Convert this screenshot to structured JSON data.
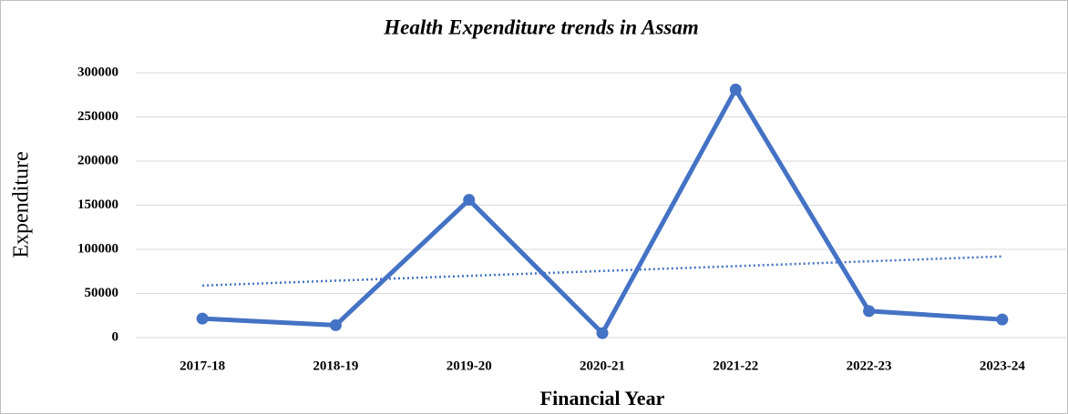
{
  "chart_data": {
    "type": "line",
    "title": "Health Expenditure trends in Assam",
    "x_label": "Financial Year",
    "y_label": "Expenditure",
    "categories": [
      "2017-18",
      "2018-19",
      "2019-20",
      "2020-21",
      "2021-22",
      "2022-23",
      "2023-24"
    ],
    "values": [
      21500,
      14000,
      156000,
      5000,
      281000,
      30000,
      20500
    ],
    "color": "#4472c4",
    "trendline": "linear",
    "ylim": [
      0,
      300000
    ],
    "yticks": [
      0,
      50000,
      100000,
      150000,
      200000,
      250000,
      300000
    ],
    "grid": true
  }
}
